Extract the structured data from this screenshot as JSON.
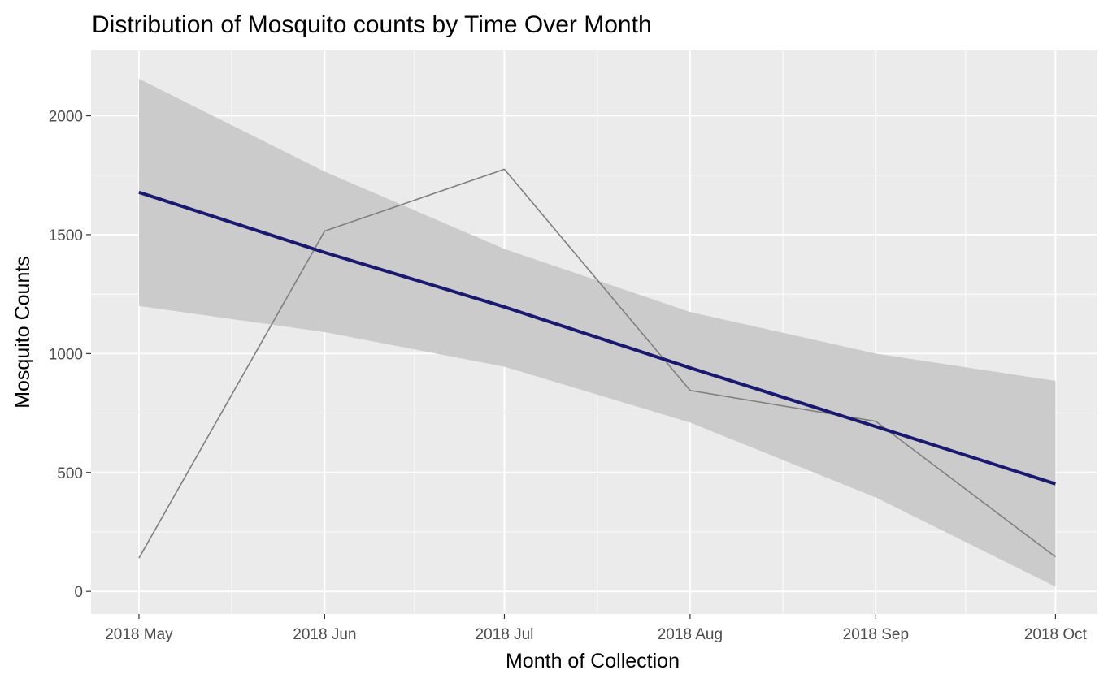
{
  "chart_data": {
    "type": "line",
    "title": "Distribution of Mosquito counts by Time Over Month",
    "xlabel": "Month of Collection",
    "ylabel": "Mosquito Counts",
    "x": [
      "2018-05-01",
      "2018-06-01",
      "2018-07-01",
      "2018-08-01",
      "2018-09-01",
      "2018-10-01"
    ],
    "x_tick_labels": [
      "2018 May",
      "2018 Jun",
      "2018 Jul",
      "2018 Aug",
      "2018 Sep",
      "2018 Oct"
    ],
    "y_ticks": [
      0,
      500,
      1000,
      1500,
      2000
    ],
    "y_tick_labels": [
      "0",
      "500",
      "1000",
      "1500",
      "2000"
    ],
    "xlim": [
      "2018-04-23",
      "2018-10-08"
    ],
    "ylim": [
      -95,
      2275
    ],
    "grid": true,
    "series": [
      {
        "type": "line",
        "color": "#7f7f7f",
        "values": [
          140,
          1515,
          1775,
          845,
          715,
          145
        ]
      },
      {
        "type": "smooth",
        "method": "linear",
        "color": "#191970",
        "values": [
          1678,
          1425,
          1196,
          940,
          693,
          452
        ],
        "ci_lower": [
          1200,
          1090,
          945,
          710,
          395,
          20
        ],
        "ci_upper": [
          2155,
          1765,
          1440,
          1175,
          1000,
          885
        ]
      }
    ],
    "colors": {
      "panel_background": "#ebebeb",
      "grid_major": "#ffffff",
      "ci_band": "#cbcbcb"
    }
  }
}
